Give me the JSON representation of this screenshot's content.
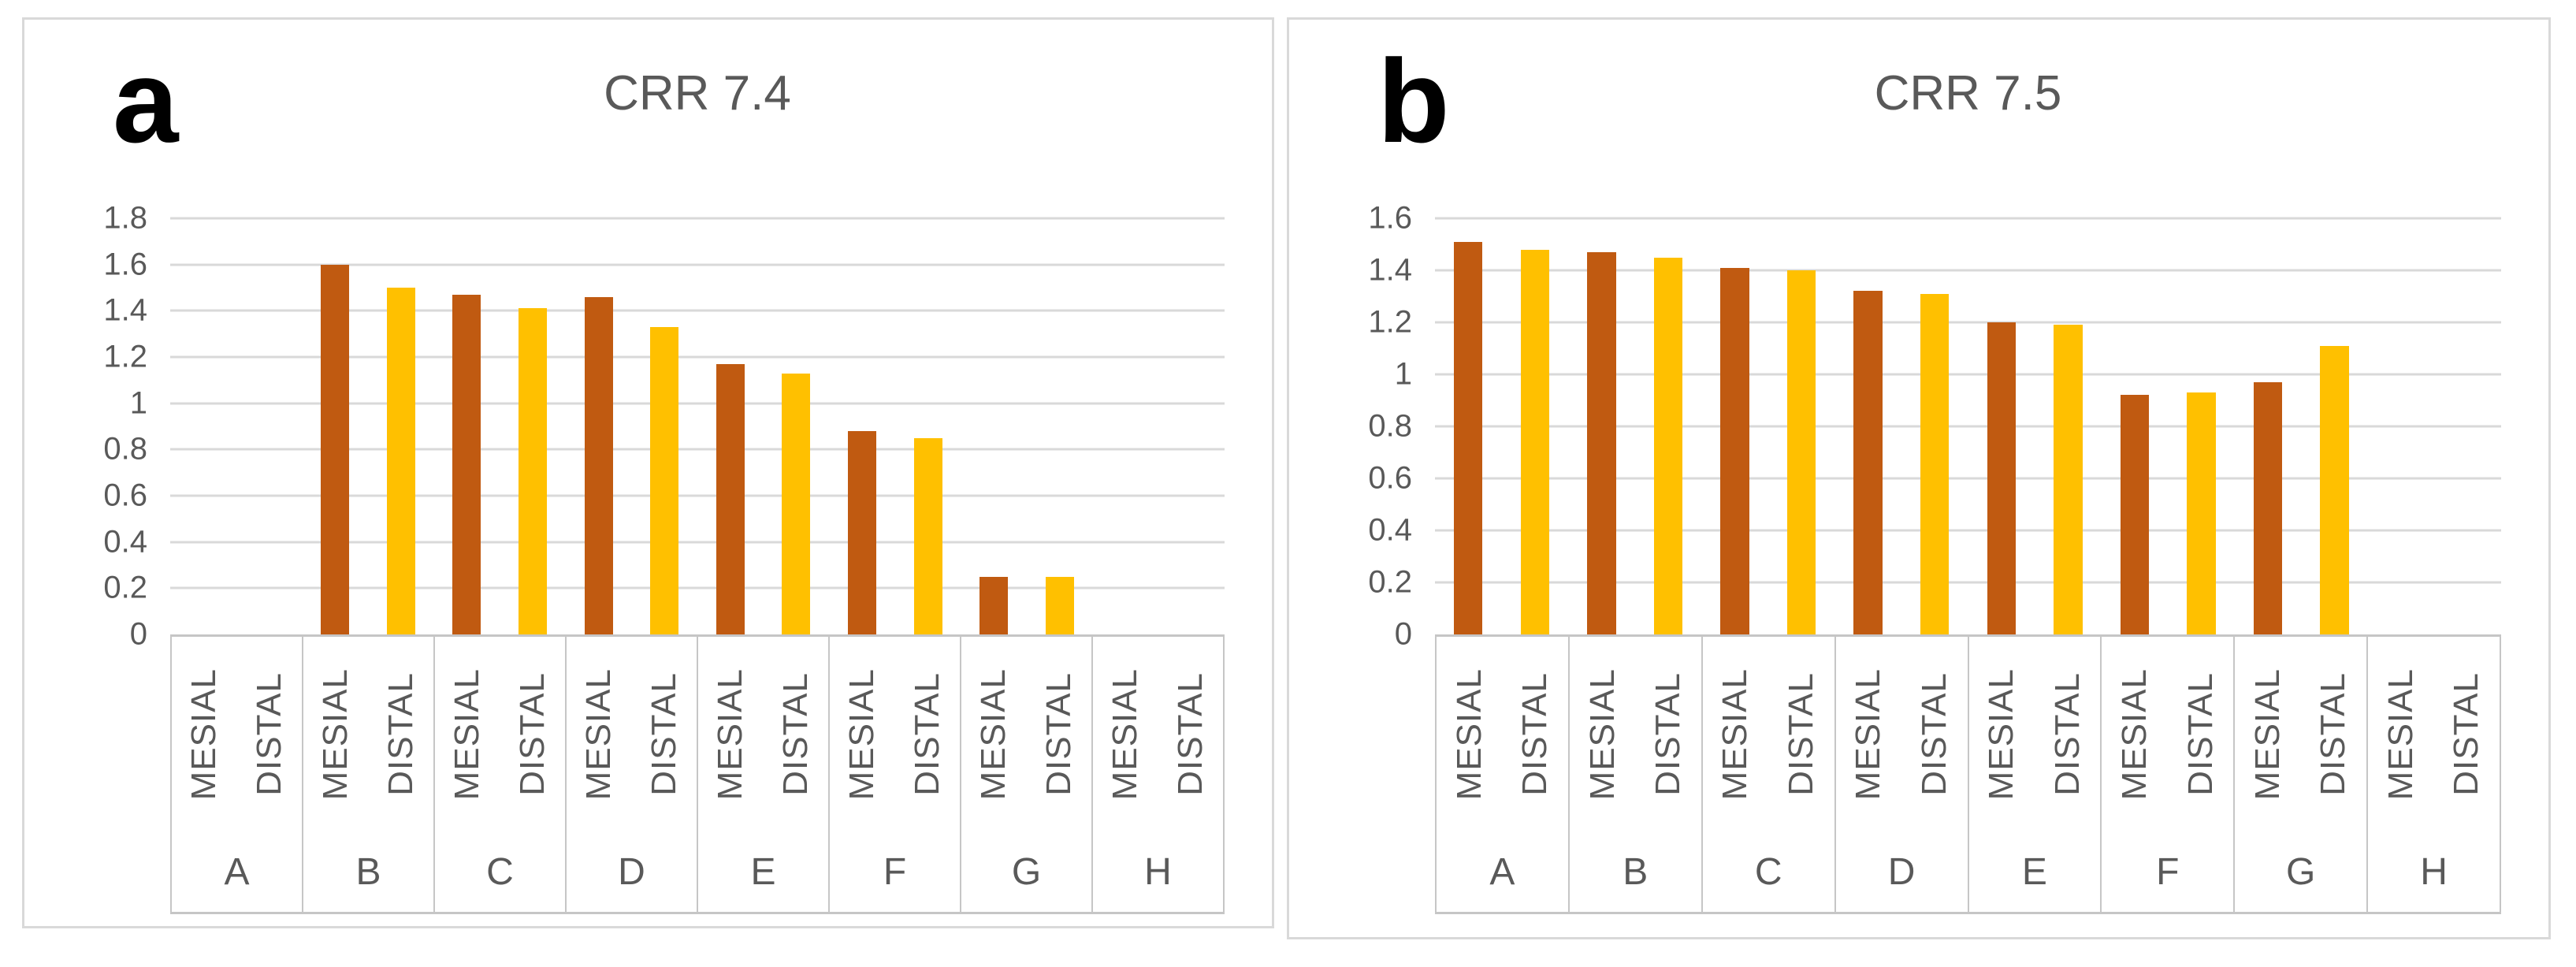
{
  "colors": {
    "mesial_bar": "#C05A11",
    "distal_bar": "#FFC000",
    "gridline": "#D9D9D9",
    "axis_text": "#595959",
    "panel_border": "#D9D9D9",
    "panel_letter": "#000000",
    "background": "#FFFFFF"
  },
  "chart_data": [
    {
      "type": "bar",
      "panel_label": "a",
      "title": "CRR 7.4",
      "categories": [
        "A",
        "B",
        "C",
        "D",
        "E",
        "F",
        "G",
        "H"
      ],
      "sub_categories": [
        "MESIAL",
        "DISTAL"
      ],
      "series": [
        {
          "name": "MESIAL",
          "values": [
            0,
            1.6,
            1.47,
            1.46,
            1.17,
            0.88,
            0.25,
            0
          ]
        },
        {
          "name": "DISTAL",
          "values": [
            0,
            1.5,
            1.41,
            1.33,
            1.13,
            0.85,
            0.25,
            0
          ]
        }
      ],
      "ylim": [
        0,
        1.8
      ],
      "ytick_step": 0.2,
      "ytick_labels": [
        "1.8",
        "1.6",
        "1.4",
        "1.2",
        "1",
        "0.8",
        "0.6",
        "0.4",
        "0.2",
        "0"
      ],
      "grid": true,
      "legend": "none",
      "bar_colors": {
        "MESIAL": "#C05A11",
        "DISTAL": "#FFC000"
      }
    },
    {
      "type": "bar",
      "panel_label": "b",
      "title": "CRR 7.5",
      "categories": [
        "A",
        "B",
        "C",
        "D",
        "E",
        "F",
        "G",
        "H"
      ],
      "sub_categories": [
        "MESIAL",
        "DISTAL"
      ],
      "series": [
        {
          "name": "MESIAL",
          "values": [
            1.51,
            1.47,
            1.41,
            1.32,
            1.2,
            0.92,
            0.97,
            0
          ]
        },
        {
          "name": "DISTAL",
          "values": [
            1.48,
            1.45,
            1.4,
            1.31,
            1.19,
            0.93,
            1.11,
            0
          ]
        }
      ],
      "ylim": [
        0,
        1.6
      ],
      "ytick_step": 0.2,
      "ytick_labels": [
        "1.6",
        "1.4",
        "1.2",
        "1",
        "0.8",
        "0.6",
        "0.4",
        "0.2",
        "0"
      ],
      "grid": true,
      "legend": "none",
      "bar_colors": {
        "MESIAL": "#C05A11",
        "DISTAL": "#FFC000"
      }
    }
  ]
}
